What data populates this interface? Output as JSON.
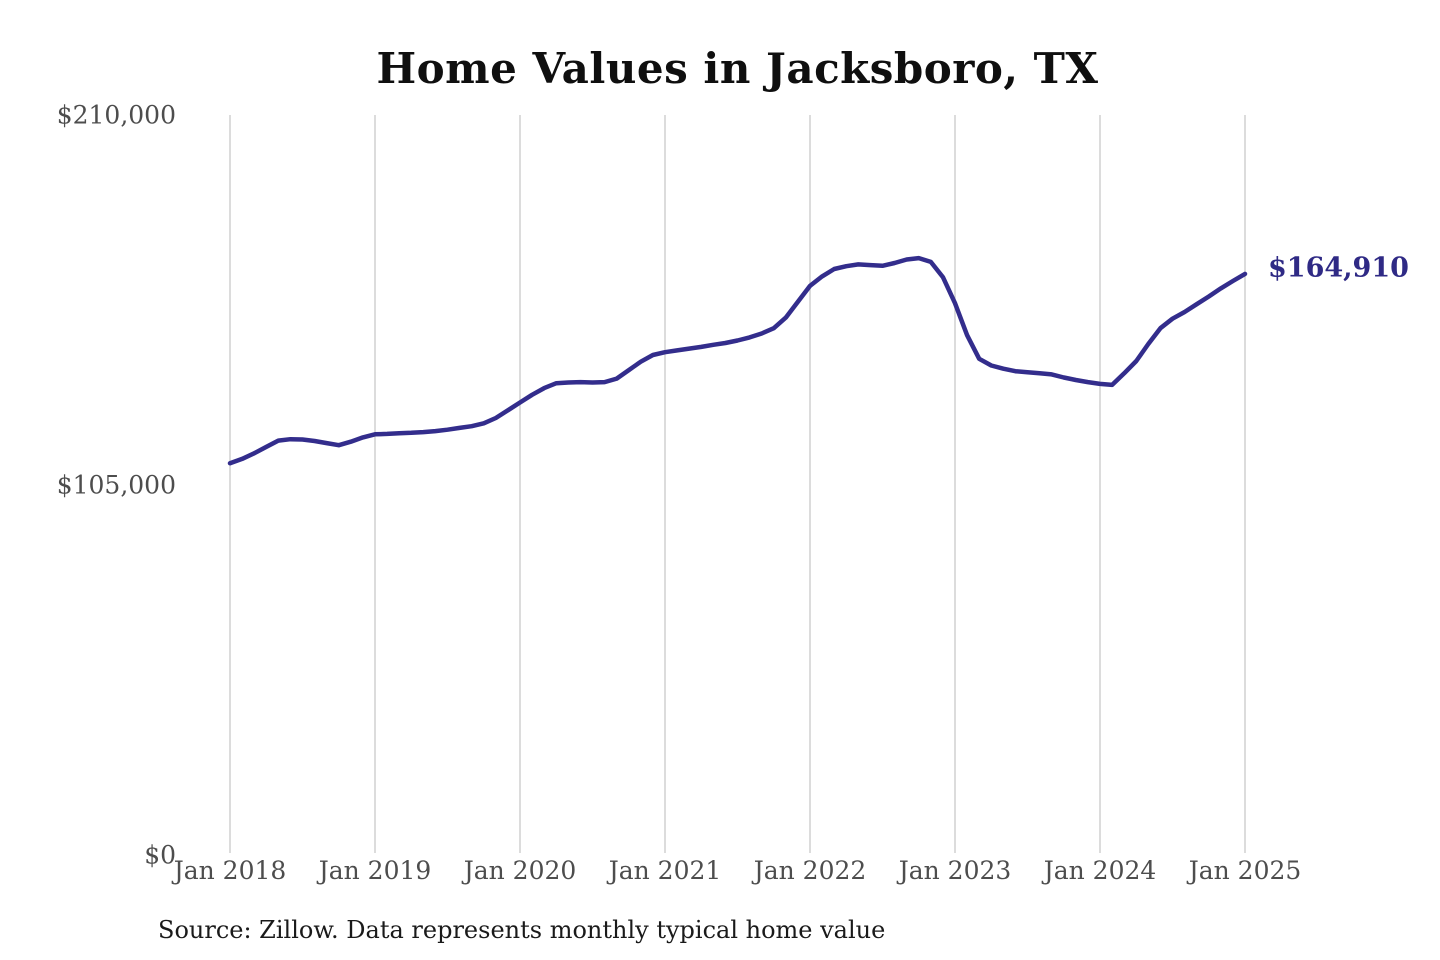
{
  "title": "Home Values in Jacksboro, TX",
  "end_label": "$164,910",
  "source_note": "Source: Zillow. Data represents monthly typical home value",
  "colors": {
    "line": "#332d8c",
    "end_label": "#2f2a85",
    "grid": "#c4c4c4",
    "tick_text": "#4d4d4d",
    "title_text": "#0f0f0f",
    "source_text": "#1a1a1a",
    "background": "#ffffff"
  },
  "chart_data": {
    "type": "line",
    "title": "Home Values in Jacksboro, TX",
    "xlabel": "",
    "ylabel": "",
    "ylim": [
      0,
      210000
    ],
    "y_ticks": [
      210000,
      105000,
      0
    ],
    "y_tick_labels": [
      "$210,000",
      "$105,000",
      "$0"
    ],
    "x_tick_labels": [
      "Jan 2018",
      "Jan 2019",
      "Jan 2020",
      "Jan 2021",
      "Jan 2022",
      "Jan 2023",
      "Jan 2024",
      "Jan 2025"
    ],
    "grid": "vertical",
    "legend": "none",
    "annotation": {
      "text": "$164,910",
      "x": "2025-01",
      "y": 164910
    },
    "series": [
      {
        "name": "Typical home value (monthly)",
        "x": [
          "2018-01",
          "2018-02",
          "2018-03",
          "2018-04",
          "2018-05",
          "2018-06",
          "2018-07",
          "2018-08",
          "2018-09",
          "2018-10",
          "2018-11",
          "2018-12",
          "2019-01",
          "2019-02",
          "2019-03",
          "2019-04",
          "2019-05",
          "2019-06",
          "2019-07",
          "2019-08",
          "2019-09",
          "2019-10",
          "2019-11",
          "2019-12",
          "2020-01",
          "2020-02",
          "2020-03",
          "2020-04",
          "2020-05",
          "2020-06",
          "2020-07",
          "2020-08",
          "2020-09",
          "2020-10",
          "2020-11",
          "2020-12",
          "2021-01",
          "2021-02",
          "2021-03",
          "2021-04",
          "2021-05",
          "2021-06",
          "2021-07",
          "2021-08",
          "2021-09",
          "2021-10",
          "2021-11",
          "2021-12",
          "2022-01",
          "2022-02",
          "2022-03",
          "2022-04",
          "2022-05",
          "2022-06",
          "2022-07",
          "2022-08",
          "2022-09",
          "2022-10",
          "2022-11",
          "2022-12",
          "2023-01",
          "2023-02",
          "2023-03",
          "2023-04",
          "2023-05",
          "2023-06",
          "2023-07",
          "2023-08",
          "2023-09",
          "2023-10",
          "2023-11",
          "2023-12",
          "2024-01",
          "2024-02",
          "2024-03",
          "2024-04",
          "2024-05",
          "2024-06",
          "2024-07",
          "2024-08",
          "2024-09",
          "2024-10",
          "2024-11",
          "2024-12",
          "2025-01"
        ],
        "values": [
          111200,
          112400,
          114000,
          115800,
          117600,
          118000,
          117900,
          117500,
          116900,
          116300,
          117300,
          118500,
          119400,
          119500,
          119700,
          119800,
          120000,
          120300,
          120700,
          121200,
          121700,
          122500,
          124000,
          126200,
          128400,
          130600,
          132500,
          133900,
          134100,
          134200,
          134100,
          134200,
          135200,
          137600,
          140000,
          141900,
          142700,
          143200,
          143700,
          144200,
          144800,
          145300,
          146000,
          146900,
          148000,
          149500,
          152500,
          157000,
          161500,
          164200,
          166300,
          167100,
          167600,
          167400,
          167200,
          168000,
          169000,
          169400,
          168300,
          164000,
          156600,
          147500,
          140800,
          138900,
          138000,
          137300,
          137000,
          136700,
          136400,
          135500,
          134800,
          134200,
          133700,
          133400,
          136700,
          140200,
          145000,
          149500,
          152200,
          154100,
          156300,
          158500,
          160800,
          162900,
          164910
        ]
      }
    ]
  }
}
